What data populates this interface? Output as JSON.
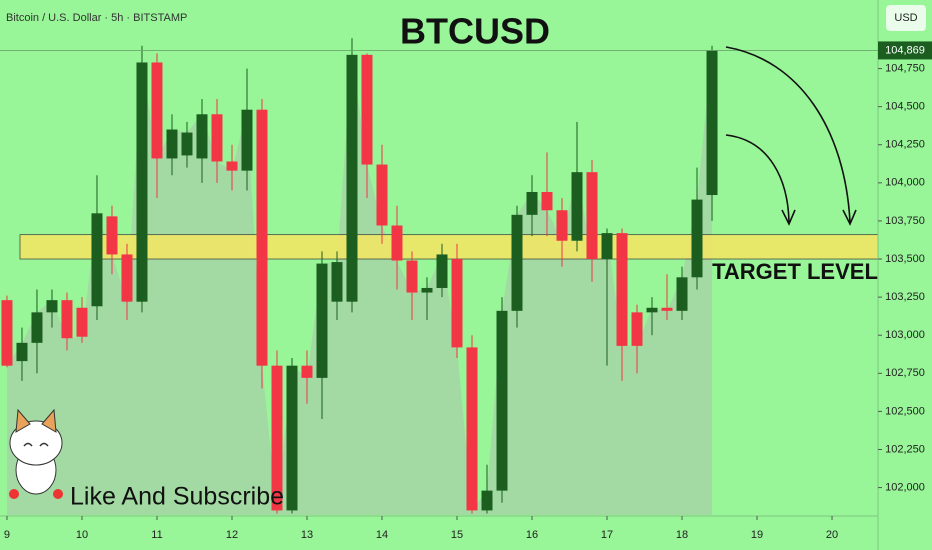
{
  "chart_data": {
    "type": "candlestick",
    "header": "Bitcoin / U.S. Dollar · 5h · BITSTAMP",
    "currency": "USD",
    "title": "BTCUSD",
    "annotations": [
      "TARGET LEVEL",
      "Like And Subscribe"
    ],
    "up_color": "#1b5e20",
    "down_color": "#f23645",
    "background": "#98f598",
    "target_zone": [
      103500,
      103660
    ],
    "target_color": "#f5e663",
    "last_price": {
      "value": 104869,
      "label": "104,869"
    },
    "xlim": [
      8.907,
      20.613
    ],
    "xticks": [
      9,
      10,
      11,
      12,
      13,
      14,
      15,
      16,
      17,
      18,
      19,
      20
    ],
    "ylim": [
      101820,
      105200
    ],
    "yticks": [
      {
        "value": 102000,
        "label": "102,000"
      },
      {
        "value": 102250,
        "label": "102,250"
      },
      {
        "value": 102500,
        "label": "102,500"
      },
      {
        "value": 102750,
        "label": "102,750"
      },
      {
        "value": 103000,
        "label": "103,000"
      },
      {
        "value": 103250,
        "label": "103,250"
      },
      {
        "value": 103500,
        "label": "103,500"
      },
      {
        "value": 103750,
        "label": "103,750"
      },
      {
        "value": 104000,
        "label": "104,000"
      },
      {
        "value": 104250,
        "label": "104,250"
      },
      {
        "value": 104500,
        "label": "104,500"
      },
      {
        "value": 104750,
        "label": "104,750"
      }
    ],
    "x": [
      9,
      9.2,
      9.4,
      9.6,
      9.8,
      10,
      10.2,
      10.4,
      10.6,
      10.8,
      11,
      11.2,
      11.4,
      11.6,
      11.8,
      12,
      12.2,
      12.4,
      12.6,
      12.8,
      13,
      13.2,
      13.4,
      13.6,
      13.8,
      14,
      14.2,
      14.4,
      14.6,
      14.8,
      15,
      15.2,
      15.4,
      15.6,
      15.8,
      16,
      16.2,
      16.4,
      16.6,
      16.8,
      17,
      17.2,
      17.4,
      17.6,
      17.8,
      18,
      18.2,
      18.4
    ],
    "open": [
      103230,
      102830,
      102950,
      103150,
      103230,
      103180,
      103190,
      103780,
      103530,
      103220,
      104790,
      104160,
      104180,
      104160,
      104450,
      104140,
      104080,
      104480,
      102800,
      101850,
      102800,
      102720,
      103220,
      103220,
      104840,
      104120,
      103720,
      103490,
      103280,
      103310,
      103500,
      102920,
      101850,
      101980,
      103160,
      103790,
      103940,
      103820,
      103620,
      104070,
      103500,
      103670,
      103150,
      103150,
      103180,
      103160,
      103380,
      103920
    ],
    "high": [
      103260,
      103050,
      103300,
      103300,
      103280,
      103250,
      104050,
      103850,
      103600,
      104900,
      104850,
      104450,
      104400,
      104550,
      104550,
      104250,
      104750,
      104550,
      102900,
      102850,
      102900,
      103550,
      103550,
      104950,
      104850,
      104250,
      103850,
      103550,
      103380,
      103600,
      103600,
      103000,
      102150,
      103250,
      103850,
      104050,
      104200,
      103900,
      104400,
      104150,
      103700,
      103700,
      103200,
      103250,
      103400,
      103450,
      104100,
      104900
    ],
    "low": [
      102790,
      102700,
      102750,
      103050,
      102900,
      102950,
      103100,
      103400,
      103100,
      103150,
      103900,
      104050,
      104100,
      104000,
      104000,
      103950,
      103950,
      102650,
      101830,
      101830,
      102550,
      102450,
      103100,
      103150,
      103900,
      103600,
      103300,
      103100,
      103100,
      103250,
      102850,
      101830,
      101830,
      101900,
      103050,
      103650,
      103650,
      103450,
      103550,
      103350,
      102800,
      102700,
      102750,
      103000,
      103100,
      103100,
      103300,
      103750
    ],
    "close": [
      102800,
      102950,
      103150,
      103230,
      102980,
      102990,
      103800,
      103530,
      103220,
      104790,
      104160,
      104350,
      104330,
      104450,
      104140,
      104080,
      104480,
      102800,
      101850,
      102800,
      102720,
      103470,
      103480,
      104840,
      104120,
      103720,
      103490,
      103280,
      103310,
      103530,
      102920,
      101850,
      101980,
      103160,
      103790,
      103940,
      103820,
      103620,
      104070,
      103500,
      103670,
      102930,
      102930,
      103180,
      103160,
      103380,
      103890,
      104869
    ]
  }
}
